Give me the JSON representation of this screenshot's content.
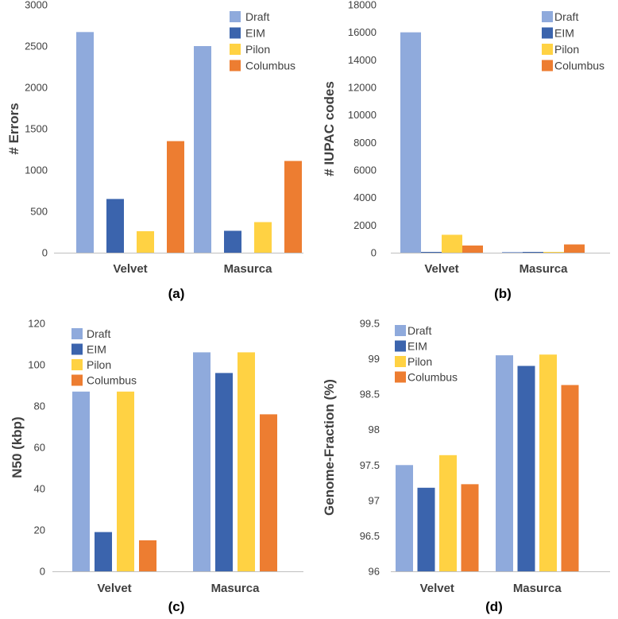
{
  "colors": {
    "Draft": "#8faadc",
    "EIM": "#3b64ad",
    "Pilon": "#ffd243",
    "Columbus": "#ed7d31",
    "axis": "#bfbfbf",
    "text": "#404040"
  },
  "chart_data": [
    {
      "type": "bar",
      "panel_label": "(a)",
      "categories": [
        "Velvet",
        "Masurca"
      ],
      "series": [
        {
          "name": "Draft",
          "values": [
            2670,
            2500
          ]
        },
        {
          "name": "EIM",
          "values": [
            650,
            265
          ]
        },
        {
          "name": "Pilon",
          "values": [
            260,
            370
          ]
        },
        {
          "name": "Columbus",
          "values": [
            1350,
            1110
          ]
        }
      ],
      "ylabel": "# Errors",
      "ylim": [
        0,
        3000
      ],
      "yticks": [
        "0",
        "500",
        "1000",
        "1500",
        "2000",
        "2500",
        "3000"
      ],
      "legend": "top-right"
    },
    {
      "type": "bar",
      "panel_label": "(b)",
      "categories": [
        "Velvet",
        "Masurca"
      ],
      "series": [
        {
          "name": "Draft",
          "values": [
            16000,
            0
          ]
        },
        {
          "name": "EIM",
          "values": [
            30,
            30
          ]
        },
        {
          "name": "Pilon",
          "values": [
            1300,
            0
          ]
        },
        {
          "name": "Columbus",
          "values": [
            520,
            600
          ]
        }
      ],
      "ylabel": "# IUPAC codes",
      "ylim": [
        0,
        18000
      ],
      "yticks": [
        "0",
        "2000",
        "4000",
        "6000",
        "8000",
        "10000",
        "12000",
        "14000",
        "16000",
        "18000"
      ],
      "legend": "top-right"
    },
    {
      "type": "bar",
      "panel_label": "(c)",
      "categories": [
        "Velvet",
        "Masurca"
      ],
      "series": [
        {
          "name": "Draft",
          "values": [
            87,
            106
          ]
        },
        {
          "name": "EIM",
          "values": [
            19,
            96
          ]
        },
        {
          "name": "Pilon",
          "values": [
            87,
            106
          ]
        },
        {
          "name": "Columbus",
          "values": [
            15,
            76
          ]
        }
      ],
      "ylabel": "N50 (kbp)",
      "ylim": [
        0,
        120
      ],
      "yticks": [
        "0",
        "20",
        "40",
        "60",
        "80",
        "100",
        "120"
      ],
      "legend": "top-left"
    },
    {
      "type": "bar",
      "panel_label": "(d)",
      "categories": [
        "Velvet",
        "Masurca"
      ],
      "series": [
        {
          "name": "Draft",
          "values": [
            97.5,
            99.05
          ]
        },
        {
          "name": "EIM",
          "values": [
            97.18,
            98.9
          ]
        },
        {
          "name": "Pilon",
          "values": [
            97.64,
            99.06
          ]
        },
        {
          "name": "Columbus",
          "values": [
            97.23,
            98.63
          ]
        }
      ],
      "ylabel": "Genome-Fraction (%)",
      "ylim": [
        96,
        99.5
      ],
      "yticks": [
        "96",
        "96.5",
        "97",
        "97.5",
        "98",
        "98.5",
        "99",
        "99.5"
      ],
      "legend": "top-left"
    }
  ]
}
